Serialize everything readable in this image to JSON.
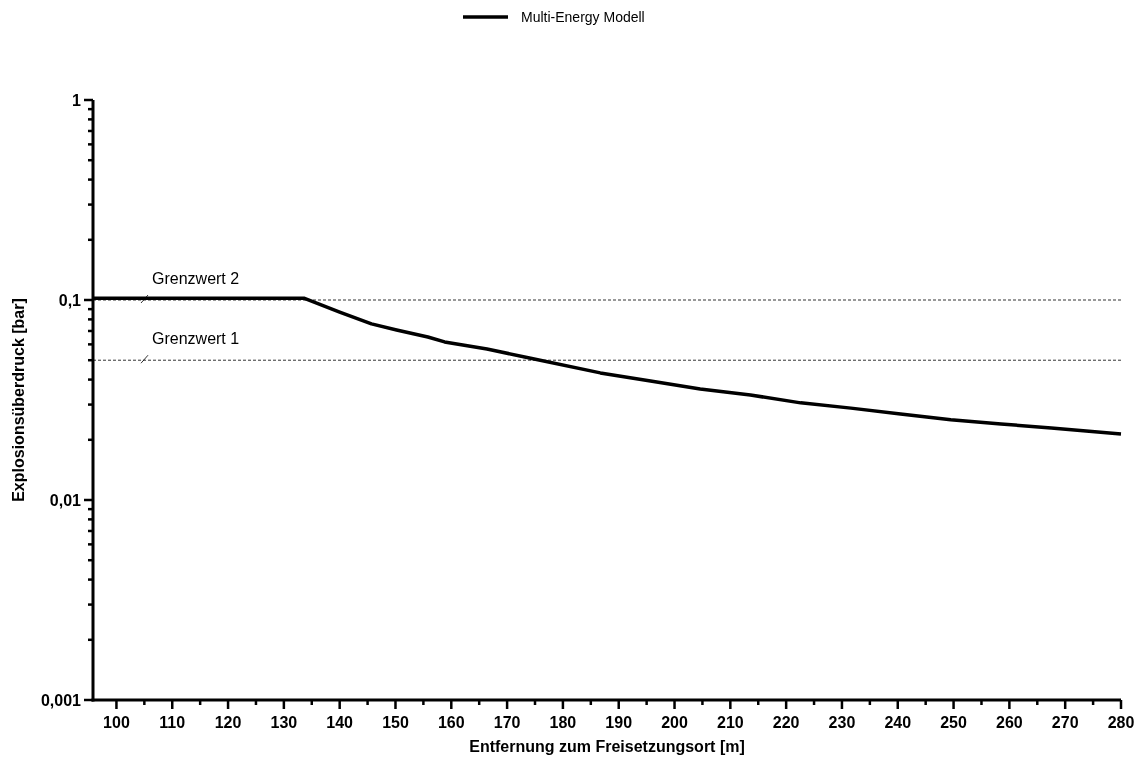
{
  "chart_data": {
    "type": "line",
    "xlabel": "Entfernung zum Freisetzungsort [m]",
    "ylabel": "Explosionsüberdruck [bar]",
    "x": [
      95.8,
      133.7,
      140,
      145.7,
      150.2,
      155.8,
      158.8,
      166.4,
      174,
      186.7,
      195.7,
      204.6,
      213.6,
      222.6,
      231.6,
      240.5,
      249.5,
      258.5,
      267.5,
      280
    ],
    "series": [
      {
        "name": "Multi-Energy Modell",
        "color": "#000000",
        "values": [
          0.102,
          0.102,
          0.087,
          0.076,
          0.0708,
          0.0653,
          0.0617,
          0.0569,
          0.0513,
          0.0432,
          0.0394,
          0.0359,
          0.0335,
          0.0306,
          0.0288,
          0.0269,
          0.0252,
          0.024,
          0.0229,
          0.0214
        ]
      }
    ],
    "log": "y",
    "xlim": [
      95.8,
      280
    ],
    "ylim": [
      0.001,
      1
    ],
    "xticks": [
      100,
      {
        "value": 105,
        "label": null
      },
      110,
      {
        "value": 115,
        "label": null
      },
      120,
      {
        "value": 125,
        "label": null
      },
      130,
      {
        "value": 135,
        "label": null
      },
      140,
      {
        "value": 145,
        "label": null
      },
      150,
      {
        "value": 155,
        "label": null
      },
      160,
      {
        "value": 165,
        "label": null
      },
      170,
      {
        "value": 175,
        "label": null
      },
      180,
      {
        "value": 185,
        "label": null
      },
      190,
      {
        "value": 195,
        "label": null
      },
      200,
      {
        "value": 205,
        "label": null
      },
      210,
      {
        "value": 215,
        "label": null
      },
      220,
      {
        "value": 225,
        "label": null
      },
      230,
      {
        "value": 235,
        "label": null
      },
      240,
      {
        "value": 245,
        "label": null
      },
      250,
      {
        "value": 255,
        "label": null
      },
      260,
      {
        "value": 265,
        "label": null
      },
      270,
      {
        "value": 275,
        "label": null
      },
      280
    ],
    "yticks": [
      {
        "value": 0.001,
        "label": "0,001"
      },
      {
        "value": 0.002,
        "label": null
      },
      {
        "value": 0.003,
        "label": null
      },
      {
        "value": 0.004,
        "label": null
      },
      {
        "value": 0.005,
        "label": null
      },
      {
        "value": 0.006,
        "label": null
      },
      {
        "value": 0.007,
        "label": null
      },
      {
        "value": 0.008,
        "label": null
      },
      {
        "value": 0.009,
        "label": null
      },
      {
        "value": 0.01,
        "label": "0,01"
      },
      {
        "value": 0.02,
        "label": null
      },
      {
        "value": 0.03,
        "label": null
      },
      {
        "value": 0.04,
        "label": null
      },
      {
        "value": 0.05,
        "label": null
      },
      {
        "value": 0.06,
        "label": null
      },
      {
        "value": 0.07,
        "label": null
      },
      {
        "value": 0.08,
        "label": null
      },
      {
        "value": 0.09,
        "label": null
      },
      {
        "value": 0.1,
        "label": "0,1"
      },
      {
        "value": 0.2,
        "label": null
      },
      {
        "value": 0.3,
        "label": null
      },
      {
        "value": 0.4,
        "label": null
      },
      {
        "value": 0.5,
        "label": null
      },
      {
        "value": 0.6,
        "label": null
      },
      {
        "value": 0.7,
        "label": null
      },
      {
        "value": 0.8,
        "label": null
      },
      {
        "value": 0.9,
        "label": null
      },
      {
        "value": 1,
        "label": "1"
      }
    ],
    "ref_lines": [
      {
        "axis": "y",
        "value": 0.1,
        "label": "Grenzwert 2",
        "color": "#333333",
        "line_style": "dashed"
      },
      {
        "axis": "y",
        "value": 0.05,
        "label": "Grenzwert 1",
        "color": "#333333",
        "line_style": "dashed"
      }
    ],
    "grid": false,
    "legend": "top",
    "line_style": "solid",
    "marker": "none"
  }
}
